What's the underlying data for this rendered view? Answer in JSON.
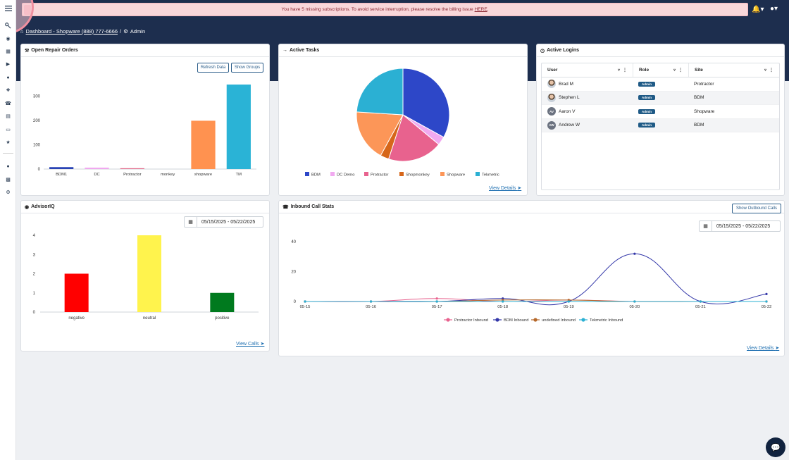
{
  "alert": {
    "text": "You have 5 missing subscriptions. To avoid service interruption, please resolve the billing issue",
    "link": "HERE",
    "end": "."
  },
  "breadcrumb": {
    "home": "Dashboard - Shopware (888) 777-6666",
    "sep": "/",
    "current": "Admin"
  },
  "icons": {
    "sidebar": [
      "menu-icon",
      "key-icon",
      "dashboard-icon",
      "calendar-icon",
      "megaphone-icon",
      "users-icon",
      "wrench-icon",
      "phone-icon",
      "book-icon",
      "chart-icon",
      "star-icon",
      "users-icon",
      "building-icon",
      "gear-icon"
    ],
    "bell": "bell-icon",
    "user": "user-icon"
  },
  "repair_orders": {
    "title": "Open Repair Orders",
    "refresh_label": "Refresh Data",
    "groups_label": "Show Groups",
    "chart_data": {
      "type": "bar",
      "categories": [
        "BDM1",
        "DC",
        "Protractor",
        "monkey",
        "shopware",
        "TM"
      ],
      "values": [
        8,
        6,
        2,
        0,
        199,
        348
      ],
      "colors": [
        "#2a44b5",
        "#f0a8ef",
        "#e26b8a",
        "#d96a1c",
        "#ff9250",
        "#2ab3d6"
      ],
      "yticks": [
        0,
        100,
        200,
        300
      ],
      "ylim": [
        0,
        380
      ],
      "grid": false
    }
  },
  "tasks": {
    "title": "Active Tasks",
    "link": "View Details",
    "chart_data": {
      "type": "pie",
      "labels": [
        "BDM",
        "DC Demo",
        "Protractor",
        "Shopmonkey",
        "Shopware",
        "Tekmetric"
      ],
      "values": [
        33,
        3,
        19,
        3,
        18,
        24
      ],
      "colors": [
        "#2d47c8",
        "#f1a9f0",
        "#e8628e",
        "#d6661a",
        "#fc9658",
        "#2bb0d3"
      ],
      "legend": "bottom"
    }
  },
  "logins": {
    "title": "Active Logins",
    "columns": [
      "User",
      "Role",
      "Site"
    ],
    "rows": [
      {
        "initials": "",
        "photo": true,
        "user": "Brad M",
        "role": "Admin",
        "site": "Protractor"
      },
      {
        "initials": "",
        "photo": true,
        "user": "Stephen L",
        "role": "Admin",
        "site": "BDM"
      },
      {
        "initials": "AV",
        "photo": false,
        "user": "Aaron V",
        "role": "Admin",
        "site": "Shopware"
      },
      {
        "initials": "AW",
        "photo": false,
        "user": "Andrew W",
        "role": "Admin",
        "site": "BDM"
      }
    ]
  },
  "advisor": {
    "title": "AdvisorIQ",
    "date_range": "05/15/2025 - 05/22/2025",
    "link": "View Calls",
    "chart_data": {
      "type": "bar",
      "categories": [
        "negative",
        "neutral",
        "positive"
      ],
      "values": [
        2,
        4,
        1
      ],
      "colors": [
        "#ff0000",
        "#fff34d",
        "#007a1e"
      ],
      "yticks": [
        0,
        1,
        2,
        3,
        4
      ],
      "ylim": [
        0,
        4
      ],
      "grid": false
    }
  },
  "calls": {
    "title": "Inbound Call Stats",
    "outbound_label": "Show Outbound Calls",
    "date_range": "05/15/2025 - 05/22/2025",
    "link": "View Details",
    "chart_data": {
      "type": "line",
      "x": [
        "05-15",
        "05-16",
        "05-17",
        "05-18",
        "05-19",
        "05-20",
        "05-21",
        "05-22"
      ],
      "yticks": [
        0,
        20,
        40
      ],
      "ylim": [
        0,
        42
      ],
      "legend": "bottom",
      "series": [
        {
          "name": "Protractor Inbound",
          "color": "#e8628e",
          "values": [
            0,
            0,
            2,
            0,
            1,
            0,
            0,
            0
          ]
        },
        {
          "name": "BDM Inbound",
          "color": "#3236a8",
          "values": [
            0,
            0,
            0,
            2,
            0,
            32,
            0,
            5
          ]
        },
        {
          "name": "undefined Inbound",
          "color": "#b5682a",
          "values": [
            0,
            0,
            0,
            1,
            1,
            0,
            0,
            0
          ]
        },
        {
          "name": "Tekmetric Inbound",
          "color": "#2bb0d3",
          "values": [
            0,
            0,
            0,
            0,
            0,
            0,
            0,
            0
          ]
        }
      ]
    }
  },
  "chat": {
    "icon": "chat-icon"
  }
}
